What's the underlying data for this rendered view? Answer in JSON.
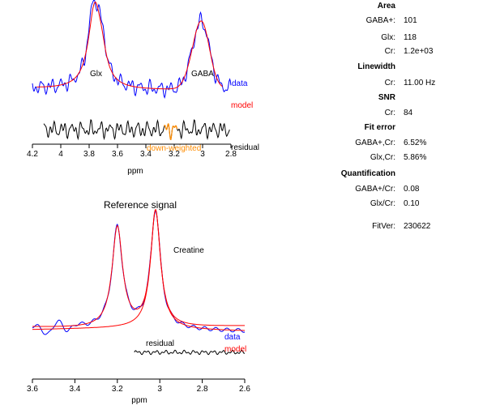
{
  "chart_data": [
    {
      "type": "line",
      "title": "",
      "xlabel": "ppm",
      "ylabel": "",
      "xlim": [
        4.2,
        2.8
      ],
      "x_reversed": true,
      "xticks": [
        "4.2",
        "4",
        "3.8",
        "3.6",
        "3.4",
        "3.2",
        "3",
        "2.8"
      ],
      "grid": false,
      "series": [
        {
          "name": "data",
          "color": "#0000ff"
        },
        {
          "name": "model",
          "color": "#ff0000"
        },
        {
          "name": "residual",
          "color": "#000000"
        },
        {
          "name": "down-weighted",
          "color": "#ff8c00"
        }
      ],
      "peaks": [
        {
          "label": "Glx",
          "ppm": 3.75
        },
        {
          "label": "GABA",
          "ppm": 3.01
        }
      ],
      "down_weighted_range": [
        3.27,
        3.18
      ]
    },
    {
      "type": "line",
      "title": "Reference signal",
      "xlabel": "ppm",
      "ylabel": "",
      "xlim": [
        3.6,
        2.6
      ],
      "x_reversed": true,
      "xticks": [
        "3.6",
        "3.4",
        "3.2",
        "3",
        "2.8",
        "2.6"
      ],
      "grid": false,
      "series": [
        {
          "name": "data",
          "color": "#0000ff"
        },
        {
          "name": "model",
          "color": "#ff0000"
        },
        {
          "name": "residual",
          "color": "#000000"
        }
      ],
      "peaks": [
        {
          "label": "Creatine",
          "ppm": 3.02
        },
        {
          "label": "",
          "ppm": 3.2
        }
      ]
    }
  ],
  "stats": {
    "area_heading": "Area",
    "area": [
      {
        "key": "GABA+:",
        "value": "101"
      },
      {
        "key": "Glx:",
        "value": "118"
      },
      {
        "key": "Cr:",
        "value": "1.2e+03"
      }
    ],
    "linewidth_heading": "Linewidth",
    "linewidth": [
      {
        "key": "Cr:",
        "value": "11.00 Hz"
      }
    ],
    "snr_heading": "SNR",
    "snr": [
      {
        "key": "Cr:",
        "value": "84"
      }
    ],
    "fit_error_heading": "Fit error",
    "fit_error": [
      {
        "key": "GABA+,Cr:",
        "value": "6.52%"
      },
      {
        "key": "Glx,Cr:",
        "value": "5.86%"
      }
    ],
    "quant_heading": "Quantification",
    "quant": [
      {
        "key": "GABA+/Cr:",
        "value": "0.08"
      },
      {
        "key": "Glx/Cr:",
        "value": "0.10"
      }
    ],
    "fitver": [
      {
        "key": "FitVer:",
        "value": "230622"
      }
    ]
  }
}
